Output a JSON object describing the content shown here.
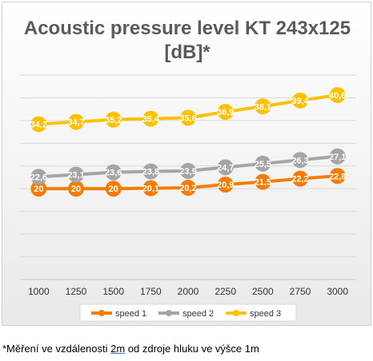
{
  "chart_data": {
    "type": "line",
    "title_lines": [
      "Acoustic pressure level KT 243x125",
      "[dB]*"
    ],
    "categories": [
      "1000",
      "1250",
      "1500",
      "1750",
      "2000",
      "2250",
      "2500",
      "2750",
      "3000"
    ],
    "series": [
      {
        "name": "speed 1",
        "color": "#f47c00",
        "values": [
          20,
          20,
          20,
          20.1,
          20.2,
          20.9,
          21.5,
          22.2,
          22.8
        ],
        "labels": [
          "20",
          "20",
          "20",
          "20,1",
          "20,2",
          "20,9",
          "21,5",
          "22,2",
          "22,8"
        ]
      },
      {
        "name": "speed 2",
        "color": "#a5a5a5",
        "values": [
          22.6,
          23.1,
          23.6,
          23.8,
          23.9,
          24.7,
          25.5,
          26.3,
          27.1
        ],
        "labels": [
          "22,6",
          "23,1",
          "23,6",
          "23,8",
          "23,9",
          "24,7",
          "25,5",
          "26,3",
          "27,1"
        ]
      },
      {
        "name": "speed 3",
        "color": "#ffc000",
        "values": [
          34.2,
          34.7,
          35.2,
          35.4,
          35.6,
          36.9,
          38.1,
          39.4,
          40.6
        ],
        "labels": [
          "34,2",
          "34,7",
          "35,2",
          "35,4",
          "35,6",
          "36,9",
          "38,1",
          "39,4",
          "40,6"
        ]
      }
    ],
    "ylim": [
      0,
      45
    ],
    "grid": true,
    "legend_position": "bottom"
  },
  "footnote": {
    "before": "*Měření ve vzdálenosti ",
    "underlined": "2m",
    "after": " od zdroje hluku ve výšce 1m"
  }
}
